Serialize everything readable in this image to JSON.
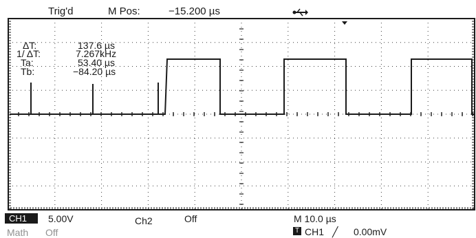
{
  "header": {
    "status": "Trig'd",
    "mpos_label": "M Pos:",
    "mpos_value": "−15.200 µs"
  },
  "cursor_readout": {
    "delta_t_label": "ΔT:",
    "delta_t_value": "137.6 µs",
    "inv_delta_t_label": "1/ ΔT:",
    "inv_delta_t_value": "7.267kHz",
    "ta_label": "Ta:",
    "ta_value": "53.40 µs",
    "tb_label": "Tb:",
    "tb_value": "−84.20 µs"
  },
  "footer": {
    "ch1_label": "CH1",
    "ch1_scale": "5.00V",
    "ch2_label": "Ch2",
    "ch2_state": "Off",
    "math_label": "Math",
    "math_state": "Off",
    "timebase": "M 10.0 µs",
    "trigger_source": "CH1",
    "trigger_slope": "╱",
    "trigger_level": "0.00mV"
  },
  "icons": {
    "usb": "usb-icon",
    "trigger_marker": "trigger-position-icon",
    "trigger_slope": "rising-edge-icon"
  },
  "colors": {
    "trace": "#1a1a1a",
    "graticule": "#3a3a3a",
    "background": "#ffffff"
  }
}
